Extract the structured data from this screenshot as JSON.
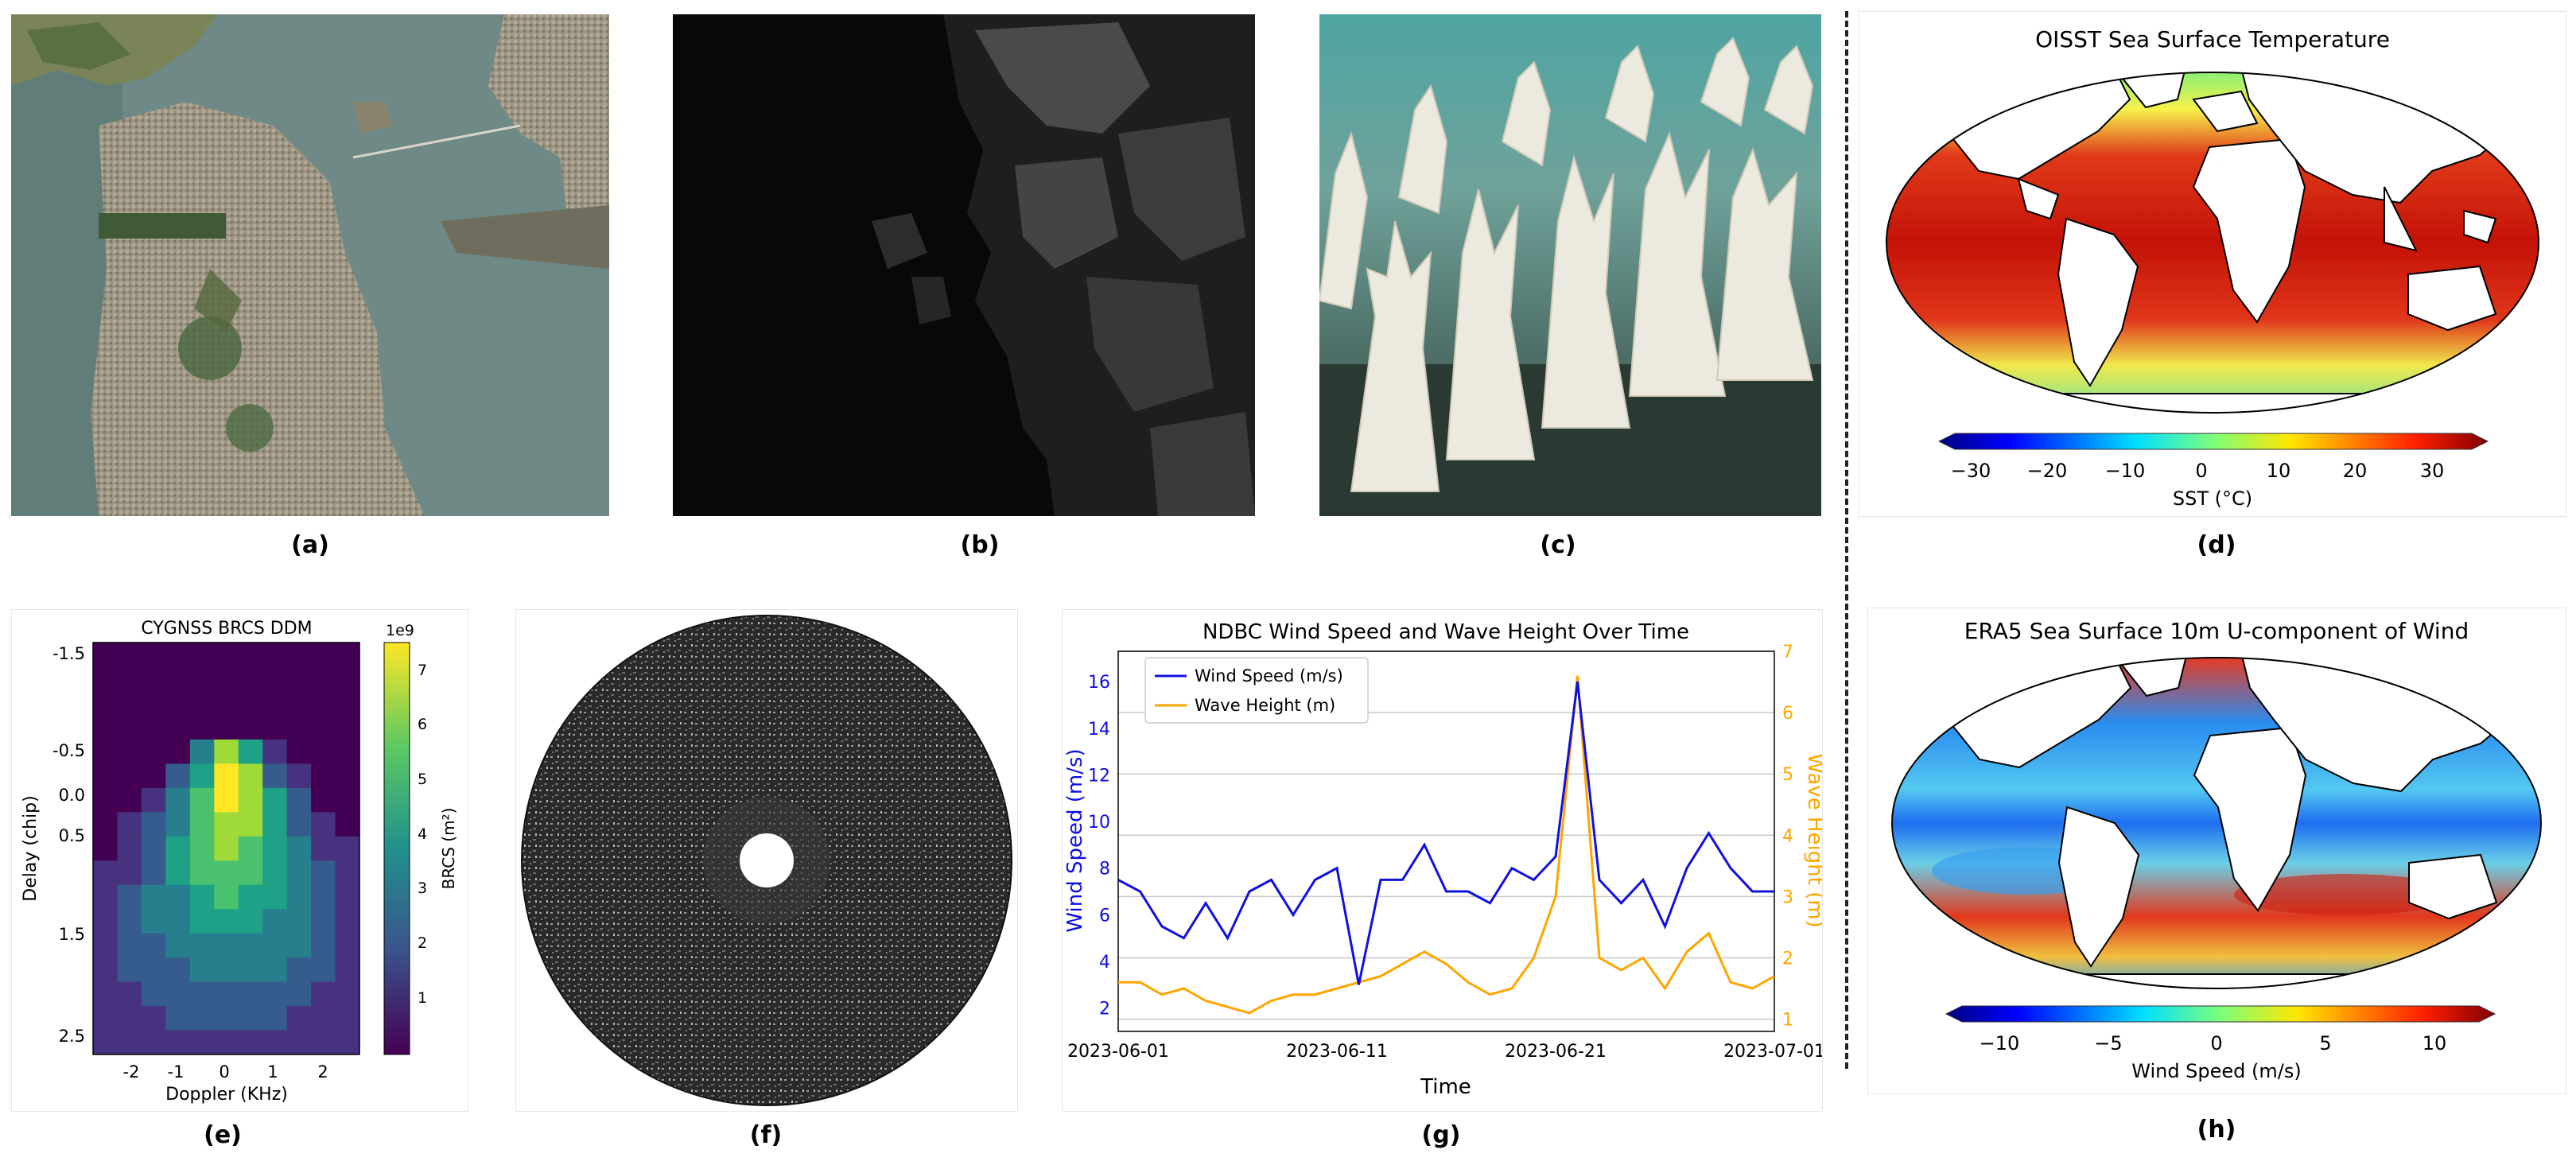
{
  "captions": {
    "a": "(a)",
    "b": "(b)",
    "c": "(c)",
    "d": "(d)",
    "e": "(e)",
    "f": "(f)",
    "g": "(g)",
    "h": "(h)"
  },
  "panel_d": {
    "title": "OISST Sea Surface Temperature",
    "colorbar_label": "SST (°C)",
    "ticks": [
      "−30",
      "−20",
      "−10",
      "0",
      "10",
      "20",
      "30"
    ]
  },
  "panel_h": {
    "title": "ERA5 Sea Surface 10m U-component of Wind",
    "colorbar_label": "Wind Speed (m/s)",
    "ticks": [
      "−10",
      "−5",
      "0",
      "5",
      "10"
    ]
  },
  "panel_e": {
    "title": "CYGNSS BRCS DDM",
    "xlabel": "Doppler (KHz)",
    "ylabel": "Delay (chip)",
    "xticks": [
      "-2",
      "-1",
      "0",
      "1",
      "2"
    ],
    "yticks": [
      "-1.5",
      "-0.5",
      "0.0",
      "0.5",
      "1.5",
      "2.5"
    ],
    "cb_label": "BRCS (m²)",
    "cb_exp": "1e9",
    "cb_ticks": [
      "1",
      "2",
      "3",
      "4",
      "5",
      "6",
      "7"
    ]
  },
  "chart_data": {
    "type": "line",
    "title": "NDBC Wind Speed and Wave Height Over Time",
    "xlabel": "Time",
    "ylabel": "Wind Speed (m/s)",
    "y2label": "Wave Height (m)",
    "x_ticks": [
      "2023-06-01",
      "2023-06-11",
      "2023-06-21",
      "2023-07-01"
    ],
    "y_ticks": [
      "2",
      "4",
      "6",
      "8",
      "10",
      "12",
      "14",
      "16"
    ],
    "y2_ticks": [
      "1",
      "2",
      "3",
      "4",
      "5",
      "6",
      "7"
    ],
    "ylim": [
      1,
      17.3
    ],
    "y2lim": [
      0.8,
      7
    ],
    "legend": "top-left",
    "colors": {
      "wind": "#1010e0",
      "wave": "#ffa500"
    },
    "x_days": [
      0,
      1,
      2,
      3,
      4,
      5,
      6,
      7,
      8,
      9,
      10,
      11,
      12,
      13,
      14,
      15,
      16,
      17,
      18,
      19,
      20,
      21,
      22,
      23,
      24,
      25,
      26,
      27,
      28,
      29,
      30
    ],
    "series": [
      {
        "name": "Wind Speed (m/s)",
        "axis": "left",
        "values": [
          7.5,
          7.0,
          5.5,
          5.0,
          6.5,
          5.0,
          7.0,
          7.5,
          6.0,
          7.5,
          8.0,
          3.0,
          7.5,
          7.5,
          9.0,
          7.0,
          7.0,
          6.5,
          8.0,
          7.5,
          8.5,
          16.0,
          7.5,
          6.5,
          7.5,
          5.5,
          8.0,
          9.5,
          8.0,
          7.0,
          7.0
        ]
      },
      {
        "name": "Wave Height (m)",
        "axis": "right",
        "values": [
          1.6,
          1.6,
          1.4,
          1.5,
          1.3,
          1.2,
          1.1,
          1.3,
          1.4,
          1.4,
          1.5,
          1.6,
          1.7,
          1.9,
          2.1,
          1.9,
          1.6,
          1.4,
          1.5,
          2.0,
          3.0,
          6.6,
          2.0,
          1.8,
          2.0,
          1.5,
          2.1,
          2.4,
          1.6,
          1.5,
          1.7
        ]
      }
    ]
  }
}
